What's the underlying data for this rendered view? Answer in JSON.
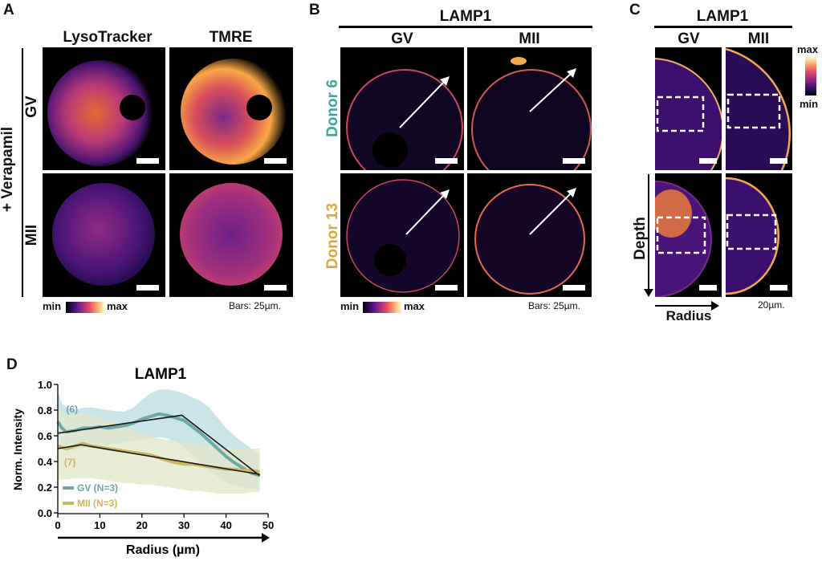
{
  "panels": {
    "A": {
      "letter": "A",
      "columns": [
        "LysoTracker",
        "TMRE"
      ],
      "group_label": "+ Verapamil",
      "rows": [
        "GV",
        "MII"
      ],
      "colorbar": {
        "min": "min",
        "max": "max"
      },
      "scale_note": "Bars: 25µm."
    },
    "B": {
      "letter": "B",
      "title": "LAMP1",
      "columns": [
        "GV",
        "MII"
      ],
      "rows": [
        {
          "label": "Donor 6",
          "color": "#3aa899"
        },
        {
          "label": "Donor 13",
          "color": "#e0a43a"
        }
      ],
      "colorbar": {
        "min": "min",
        "max": "max"
      },
      "scale_note": "Bars: 25µm."
    },
    "C": {
      "letter": "C",
      "title": "LAMP1",
      "columns": [
        "GV",
        "MII"
      ],
      "colorbar": {
        "min": "min",
        "max": "max"
      },
      "depth_label": "Depth",
      "radius_label": "Radius",
      "scale_note": "20µm."
    },
    "D": {
      "letter": "D"
    }
  },
  "chart_data": {
    "type": "line",
    "title": "LAMP1",
    "xlabel": "Radius (µm)",
    "ylabel": "Norm. Intensity",
    "xlim": [
      0,
      50
    ],
    "ylim": [
      0,
      1.0
    ],
    "xticks": [
      "0",
      "10",
      "20",
      "30",
      "40",
      "50"
    ],
    "xtick_values": [
      0,
      10,
      20,
      30,
      40,
      50
    ],
    "yticks": [
      "0.0",
      "0.2",
      "0.4",
      "0.6",
      "0.8",
      "1.0"
    ],
    "ytick_values": [
      0,
      0.2,
      0.4,
      0.6,
      0.8,
      1.0
    ],
    "grid": false,
    "legend_position": "bottom-left",
    "annotations": [
      {
        "text": "(6)",
        "x": 2,
        "y": 0.78,
        "series": "GV (N=3)"
      },
      {
        "text": "(7)",
        "x": 1.5,
        "y": 0.37,
        "series": "MII (N=3)"
      }
    ],
    "series": [
      {
        "name": "GV (N=3)",
        "color": "#6fa9a3",
        "band_color": "#b9dbe0",
        "x": [
          0,
          1,
          2,
          4,
          6,
          8,
          10,
          12,
          14,
          16,
          18,
          20,
          22,
          24,
          26,
          28,
          30,
          32,
          34,
          36,
          38,
          40,
          42,
          44,
          46,
          48
        ],
        "mean": [
          0.71,
          0.66,
          0.63,
          0.64,
          0.66,
          0.66,
          0.67,
          0.66,
          0.67,
          0.68,
          0.7,
          0.73,
          0.75,
          0.77,
          0.76,
          0.74,
          0.72,
          0.67,
          0.62,
          0.56,
          0.5,
          0.44,
          0.39,
          0.35,
          0.31,
          0.29
        ],
        "upper": [
          0.95,
          0.85,
          0.82,
          0.8,
          0.82,
          0.82,
          0.81,
          0.8,
          0.79,
          0.79,
          0.82,
          0.88,
          0.93,
          0.96,
          0.96,
          0.95,
          0.93,
          0.9,
          0.87,
          0.82,
          0.74,
          0.66,
          0.6,
          0.55,
          0.5,
          0.45
        ],
        "lower": [
          0.55,
          0.5,
          0.48,
          0.49,
          0.5,
          0.52,
          0.53,
          0.53,
          0.54,
          0.55,
          0.56,
          0.57,
          0.58,
          0.59,
          0.58,
          0.55,
          0.51,
          0.45,
          0.39,
          0.33,
          0.28,
          0.24,
          0.21,
          0.2,
          0.19,
          0.18
        ],
        "fit": {
          "x": [
            0,
            29.5,
            48
          ],
          "y": [
            0.62,
            0.76,
            0.29
          ]
        }
      },
      {
        "name": "MII (N=3)",
        "color": "#c9b860",
        "band_color": "#e3e7c8",
        "x": [
          0,
          1,
          2,
          4,
          6,
          8,
          10,
          12,
          14,
          16,
          18,
          20,
          22,
          24,
          26,
          28,
          30,
          32,
          34,
          36,
          38,
          40,
          42,
          44,
          46,
          48
        ],
        "mean": [
          0.52,
          0.51,
          0.5,
          0.52,
          0.54,
          0.52,
          0.51,
          0.5,
          0.49,
          0.48,
          0.47,
          0.46,
          0.45,
          0.43,
          0.41,
          0.39,
          0.38,
          0.38,
          0.37,
          0.36,
          0.35,
          0.34,
          0.34,
          0.33,
          0.33,
          0.32
        ],
        "upper": [
          0.82,
          0.78,
          0.76,
          0.77,
          0.78,
          0.76,
          0.74,
          0.72,
          0.7,
          0.67,
          0.64,
          0.62,
          0.6,
          0.58,
          0.57,
          0.56,
          0.55,
          0.54,
          0.53,
          0.52,
          0.51,
          0.5,
          0.5,
          0.5,
          0.5,
          0.5
        ],
        "lower": [
          0.25,
          0.26,
          0.26,
          0.27,
          0.27,
          0.27,
          0.26,
          0.25,
          0.24,
          0.23,
          0.23,
          0.22,
          0.22,
          0.21,
          0.2,
          0.19,
          0.18,
          0.17,
          0.17,
          0.16,
          0.15,
          0.15,
          0.15,
          0.15,
          0.16,
          0.16
        ],
        "fit": {
          "x": [
            0,
            5.5,
            48
          ],
          "y": [
            0.5,
            0.53,
            0.3
          ]
        }
      }
    ],
    "fit_line_color": "#1a1a1a"
  }
}
